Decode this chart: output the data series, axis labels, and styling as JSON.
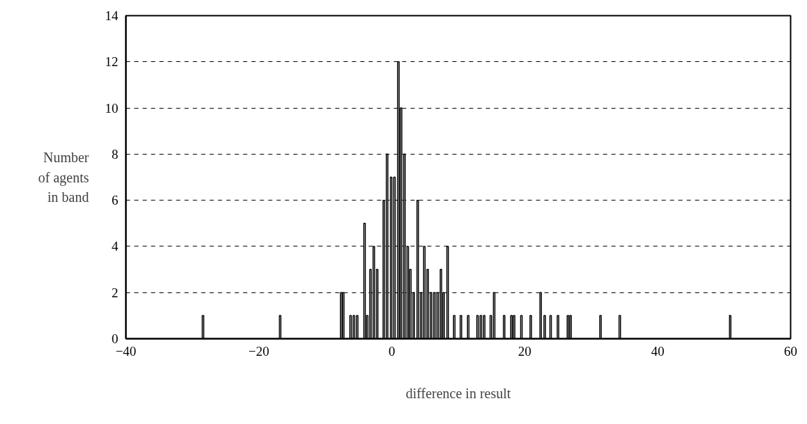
{
  "chart_data": {
    "type": "bar",
    "xlabel": "difference in result",
    "ylabel": "Number\nof agents\nin band",
    "x": [
      -28.4,
      -16.8,
      -7.6,
      -7.3,
      -6.2,
      -5.7,
      -5.2,
      -4.1,
      -3.7,
      -3.2,
      -2.7,
      -2.2,
      -1.2,
      -0.7,
      -0.1,
      0.4,
      1.0,
      1.4,
      1.9,
      2.4,
      2.8,
      3.3,
      3.9,
      4.4,
      4.9,
      5.4,
      5.9,
      6.4,
      6.9,
      7.4,
      7.8,
      8.4,
      9.4,
      10.4,
      11.5,
      12.9,
      13.4,
      13.9,
      14.9,
      15.4,
      16.9,
      18.0,
      18.4,
      19.5,
      20.9,
      22.4,
      23.0,
      23.9,
      25.0,
      26.5,
      26.9,
      31.4,
      34.3,
      50.9
    ],
    "values": [
      1,
      1,
      2,
      2,
      1,
      1,
      1,
      5,
      1,
      3,
      4,
      3,
      6,
      8,
      7,
      7,
      12,
      10,
      8,
      4,
      3,
      2,
      6,
      2,
      4,
      3,
      2,
      2,
      2,
      3,
      2,
      4,
      1,
      1,
      1,
      1,
      1,
      1,
      1,
      2,
      1,
      1,
      1,
      1,
      1,
      2,
      1,
      1,
      1,
      1,
      1,
      1,
      1,
      1
    ],
    "color": "#000000",
    "xlim": [
      -40,
      60
    ],
    "xticks": [
      -40,
      -20,
      0,
      20,
      40,
      60
    ],
    "ylim": [
      0,
      14
    ],
    "yticks": [
      0,
      2,
      4,
      6,
      8,
      10,
      12,
      14
    ],
    "grid": "y"
  }
}
